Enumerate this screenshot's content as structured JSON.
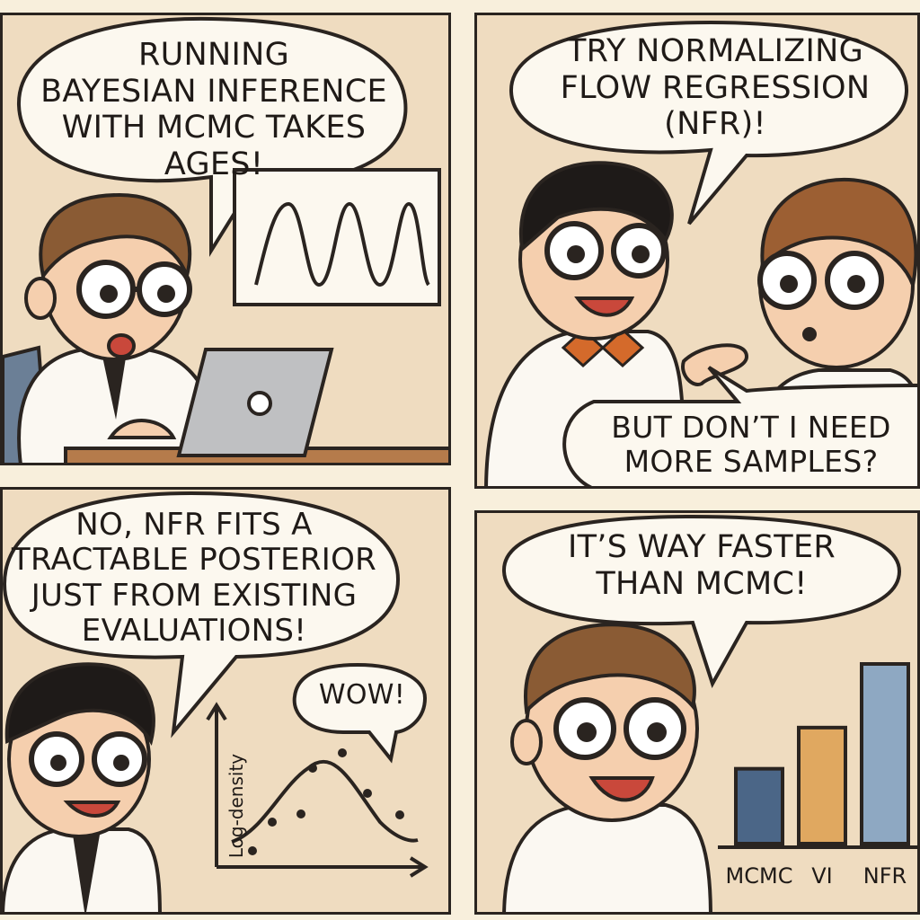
{
  "panels": [
    {
      "speech": "RUNNING\nBAYESIAN INFERENCE\nWITH MCMC TAKES\nAGES!"
    },
    {
      "speech": "TRY NORMALIZING\nFLOW REGRESSION\n(NFR)!",
      "reply": "BUT DON’T I NEED\nMORE SAMPLES?"
    },
    {
      "speech": "NO, NFR FITS A\nTRACTABLE POSTERIOR\nJUST FROM EXISTING\nEVALUATIONS!",
      "exclaim": "WOW!",
      "plot_ylabel": "Log-density"
    },
    {
      "speech": "IT’S WAY FASTER\nTHAN MCMC!"
    }
  ],
  "chart_data": {
    "type": "bar",
    "categories": [
      "MCMC",
      "VI",
      "NFR"
    ],
    "values": [
      1,
      1.55,
      2.4
    ],
    "colors": [
      "#4b6687",
      "#e0a860",
      "#8ea8c2"
    ],
    "title": "",
    "xlabel": "",
    "ylabel": ""
  }
}
